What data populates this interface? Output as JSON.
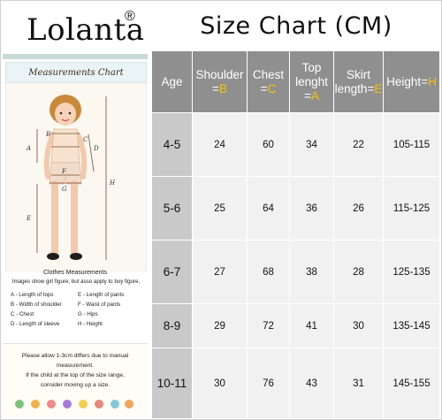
{
  "brand": {
    "name": "Lolanta",
    "mark": "®"
  },
  "title": "Size Chart (CM)",
  "panel": {
    "title": "Measurements Chart",
    "figure_labels": [
      "A",
      "B",
      "C",
      "D",
      "E",
      "F",
      "G",
      "H"
    ],
    "clothes_title": "Clothes Measurements",
    "clothes_sub": "Images show girl figure, but asso apply to boy figure.",
    "legend": [
      [
        "A - Length of tops",
        "E - Length of pants"
      ],
      [
        "B - Width of shoulder",
        "F - Waist of pants"
      ],
      [
        "C - Chest",
        "G - Hips"
      ],
      [
        "D - Length of sleeve",
        "H - Height"
      ]
    ],
    "note": [
      "Please allow 1-3cm differs due to manual",
      "measurement.",
      "If the child at the top of the size range,",
      "consider moving up a size."
    ]
  },
  "table": {
    "headers": [
      {
        "text": "Age",
        "code": ""
      },
      {
        "text": "Shoulder =",
        "code": "B"
      },
      {
        "text": "Chest =",
        "code": "C"
      },
      {
        "text": "Top lenght =",
        "code": "A"
      },
      {
        "text": "Skirt length=",
        "code": "E"
      },
      {
        "text": "Height=",
        "code": "H"
      }
    ],
    "rows": [
      [
        "4-5",
        "24",
        "60",
        "34",
        "22",
        "105-115"
      ],
      [
        "5-6",
        "25",
        "64",
        "36",
        "26",
        "115-125"
      ],
      [
        "6-7",
        "27",
        "68",
        "38",
        "28",
        "125-135"
      ],
      [
        "8-9",
        "29",
        "72",
        "41",
        "30",
        "135-145"
      ],
      [
        "10-11",
        "30",
        "76",
        "43",
        "31",
        "145-155"
      ]
    ]
  },
  "colors": {
    "header_bg": "#8f8f8f",
    "code_yellow": "#f7c500",
    "age_bg": "#c9c9c9",
    "value_bg": "#f1f1f1"
  }
}
